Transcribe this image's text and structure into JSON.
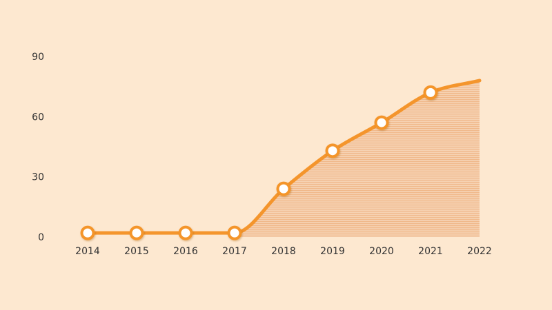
{
  "chart_data": {
    "type": "area",
    "x": [
      "2014",
      "2015",
      "2016",
      "2017",
      "2018",
      "2019",
      "2020",
      "2021",
      "2022"
    ],
    "values": [
      2,
      2,
      2,
      2,
      24,
      43,
      57,
      72,
      78
    ],
    "markers": [
      true,
      true,
      true,
      true,
      true,
      true,
      true,
      true,
      false
    ],
    "y_ticks": [
      "0",
      "30",
      "60",
      "90"
    ],
    "ylim": [
      0,
      90
    ],
    "grid": false,
    "colors": {
      "background": "#fde8d0",
      "line": "#f4952c",
      "fill": "#f4c4a0"
    }
  }
}
